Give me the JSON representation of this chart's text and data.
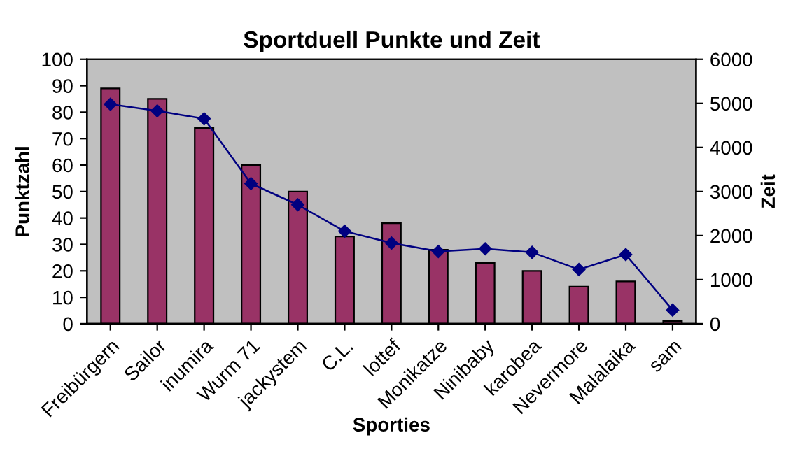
{
  "chart_data": {
    "type": "bar",
    "title": "Sportduell Punkte und Zeit",
    "xlabel": "Sporties",
    "ylabel": "Punktzahl",
    "y2label": "Zeit",
    "categories": [
      "Freibürgern",
      "Sailor",
      "inumira",
      "Wurm 71",
      "jackystem",
      "C.L.",
      "lottef",
      "Monikatze",
      "Ninibaby",
      "karobea",
      "Nevermore",
      "Malalaika",
      "sam"
    ],
    "series": [
      {
        "color": "#993366",
        "values": [
          89,
          85,
          74,
          60,
          50,
          33,
          38,
          28,
          23,
          20,
          14,
          16,
          1
        ]
      },
      {
        "type": "line",
        "axis": "y2",
        "color": "#000080",
        "marker": "diamond",
        "values": [
          4980,
          4830,
          4650,
          3180,
          2700,
          2100,
          1830,
          1640,
          1700,
          1620,
          1230,
          1570,
          310
        ]
      }
    ],
    "ylim": [
      0,
      100
    ],
    "yticks": [
      0,
      10,
      20,
      30,
      40,
      50,
      60,
      70,
      80,
      90,
      100
    ],
    "y2lim": [
      0,
      6000
    ],
    "y2ticks": [
      0,
      1000,
      2000,
      3000,
      4000,
      5000,
      6000
    ],
    "grid": false,
    "legend": false
  }
}
